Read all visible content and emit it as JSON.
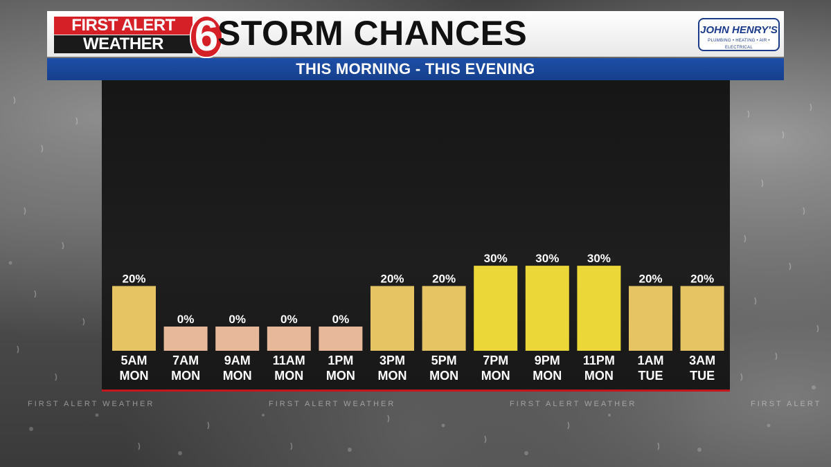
{
  "header": {
    "logo_line1": "FIRST ALERT",
    "logo_line2": "WEATHER",
    "logo_number": "6",
    "title": "STORM CHANCES",
    "subtitle": "THIS MORNING  -  THIS EVENING"
  },
  "sponsor": {
    "name": "JOHN HENRY'S",
    "tagline": "PLUMBING • HEATING • AIR • ELECTRICAL"
  },
  "watermarks": [
    "FIRST ALERT WEATHER",
    "FIRST ALERT WEATHER",
    "FIRST ALERT WEATHER",
    "FIRST ALERT"
  ],
  "colors": {
    "bar_low": "#e7b899",
    "bar_mid": "#e6c463",
    "bar_high": "#ecd739",
    "accent_red": "#c4161c",
    "header_blue": "#1d4fa8"
  },
  "chart_data": {
    "type": "bar",
    "title": "STORM CHANCES",
    "subtitle": "THIS MORNING  -  THIS EVENING",
    "categories": [
      {
        "time": "5AM",
        "day": "MON"
      },
      {
        "time": "7AM",
        "day": "MON"
      },
      {
        "time": "9AM",
        "day": "MON"
      },
      {
        "time": "11AM",
        "day": "MON"
      },
      {
        "time": "1PM",
        "day": "MON"
      },
      {
        "time": "3PM",
        "day": "MON"
      },
      {
        "time": "5PM",
        "day": "MON"
      },
      {
        "time": "7PM",
        "day": "MON"
      },
      {
        "time": "9PM",
        "day": "MON"
      },
      {
        "time": "11PM",
        "day": "MON"
      },
      {
        "time": "1AM",
        "day": "TUE"
      },
      {
        "time": "3AM",
        "day": "TUE"
      }
    ],
    "values": [
      20,
      0,
      0,
      0,
      0,
      20,
      20,
      30,
      30,
      30,
      20,
      20
    ],
    "value_labels": [
      "20%",
      "0%",
      "0%",
      "0%",
      "0%",
      "20%",
      "20%",
      "30%",
      "30%",
      "30%",
      "20%",
      "20%"
    ],
    "unit": "%",
    "ylim": [
      0,
      100
    ],
    "grid": false,
    "legend": "none"
  }
}
